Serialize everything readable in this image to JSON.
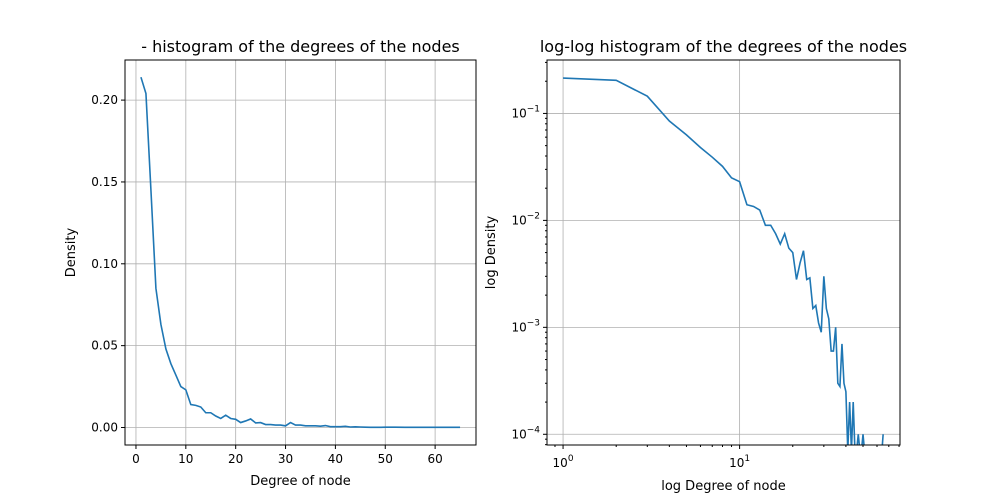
{
  "chart_data": [
    {
      "type": "line",
      "title": "- histogram of the degrees of the nodes",
      "xlabel": "Degree of node",
      "ylabel": "Density",
      "xlim": [
        -2.2,
        68.2
      ],
      "ylim": [
        -0.0107,
        0.2245
      ],
      "xticks": [
        0,
        10,
        20,
        30,
        40,
        50,
        60
      ],
      "xtick_labels": [
        "0",
        "10",
        "20",
        "30",
        "40",
        "50",
        "60"
      ],
      "yticks": [
        0.0,
        0.05,
        0.1,
        0.15,
        0.2
      ],
      "ytick_labels": [
        "0.00",
        "0.05",
        "0.10",
        "0.15",
        "0.20"
      ],
      "grid": true,
      "series": [
        {
          "color": "#1f77b4",
          "x": [
            1,
            2,
            3,
            4,
            5,
            6,
            7,
            8,
            9,
            10,
            11,
            12,
            13,
            14,
            15,
            16,
            17,
            18,
            19,
            20,
            21,
            22,
            23,
            24,
            25,
            26,
            27,
            28,
            29,
            30,
            31,
            32,
            33,
            34,
            35,
            36,
            37,
            38,
            39,
            40,
            41,
            42,
            43,
            44,
            45,
            46,
            47,
            48,
            49,
            50,
            52,
            54,
            56,
            58,
            60,
            62,
            65
          ],
          "y": [
            0.214,
            0.204,
            0.145,
            0.085,
            0.063,
            0.048,
            0.039,
            0.032,
            0.025,
            0.023,
            0.014,
            0.0135,
            0.0125,
            0.009,
            0.009,
            0.007,
            0.0055,
            0.0075,
            0.0055,
            0.005,
            0.003,
            0.004,
            0.0052,
            0.0028,
            0.003,
            0.0018,
            0.0018,
            0.0015,
            0.0015,
            0.001,
            0.003,
            0.0015,
            0.0015,
            0.001,
            0.001,
            0.001,
            0.0008,
            0.0012,
            0.0005,
            0.0005,
            0.0005,
            0.0007,
            0.0003,
            0.0004,
            0.0003,
            0.0002,
            0.0001,
            0.0001,
            0.0001,
            0.0002,
            0.0002,
            0.0001,
            0.0001,
            0.0001,
            0.0001,
            0.0001,
            0.0001
          ]
        }
      ]
    },
    {
      "type": "line",
      "title": "log-log histogram of the degrees of the nodes",
      "xlabel": "log Degree of node",
      "ylabel": "log Density",
      "xscale": "log",
      "yscale": "log",
      "xlim": [
        0.811,
        81.0
      ],
      "ylim": [
        7.94e-05,
        0.316
      ],
      "xticks": [
        1,
        10
      ],
      "xtick_labels": [
        "10^0",
        "10^1"
      ],
      "yticks": [
        0.0001,
        0.001,
        0.01,
        0.1
      ],
      "ytick_labels": [
        "10^-4",
        "10^-3",
        "10^-2",
        "10^-1"
      ],
      "grid": true,
      "series": [
        {
          "color": "#1f77b4",
          "points": [
            [
              1,
              0.214
            ],
            [
              2,
              0.204
            ],
            [
              3,
              0.145
            ],
            [
              4,
              0.085
            ],
            [
              5,
              0.063
            ],
            [
              6,
              0.048
            ],
            [
              7,
              0.039
            ],
            [
              8,
              0.032
            ],
            [
              9,
              0.025
            ],
            [
              10,
              0.023
            ],
            [
              11,
              0.014
            ],
            [
              12,
              0.0135
            ],
            [
              13,
              0.0125
            ],
            [
              14,
              0.009
            ],
            [
              15,
              0.009
            ],
            [
              16,
              0.0075
            ],
            [
              17,
              0.006
            ],
            [
              18,
              0.0075
            ],
            [
              19,
              0.0055
            ],
            [
              20,
              0.005
            ],
            [
              21,
              0.0028
            ],
            [
              22,
              0.004
            ],
            [
              23,
              0.0052
            ],
            [
              24,
              0.0028
            ],
            [
              25,
              0.0029
            ],
            [
              26,
              0.0015
            ],
            [
              27,
              0.0016
            ],
            [
              28,
              0.0011
            ],
            [
              29,
              0.0009
            ],
            [
              30,
              0.003
            ],
            [
              31,
              0.0015
            ],
            [
              32,
              0.0012
            ],
            [
              33,
              0.0006
            ],
            [
              34,
              0.0006
            ],
            [
              35,
              0.001
            ],
            [
              36,
              0.0003
            ],
            [
              37,
              0.00028
            ],
            [
              38,
              0.0007
            ],
            [
              39,
              0.0003
            ],
            [
              40,
              0.00025
            ],
            [
              41,
              7e-05
            ],
            [
              42,
              0.0002
            ],
            [
              43,
              7e-05
            ],
            [
              44,
              0.0002
            ],
            [
              45,
              7e-05
            ],
            [
              46,
              7e-05
            ],
            [
              47,
              0.0001
            ],
            [
              48,
              7e-05
            ],
            [
              49,
              7e-05
            ],
            [
              50,
              0.0001
            ],
            [
              51,
              7e-05
            ],
            [
              52,
              7e-05
            ],
            [
              53,
              7e-05
            ],
            [
              54,
              7e-05
            ],
            [
              55,
              7e-05
            ],
            [
              56,
              7e-05
            ],
            [
              57,
              7e-05
            ],
            [
              58,
              7e-05
            ],
            [
              59,
              7e-05
            ],
            [
              60,
              7e-05
            ],
            [
              61,
              7e-05
            ],
            [
              62,
              7e-05
            ],
            [
              63,
              7e-05
            ],
            [
              64,
              7e-05
            ],
            [
              65,
              0.0001
            ]
          ]
        }
      ]
    }
  ]
}
